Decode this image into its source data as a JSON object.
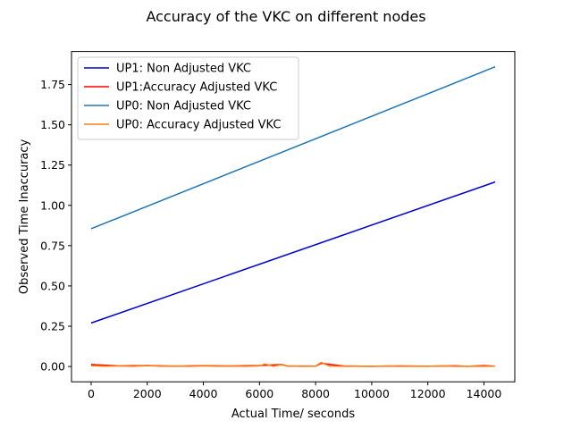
{
  "chart_data": {
    "type": "line",
    "title": "Accuracy of the VKC on different nodes",
    "xlabel": "Actual Time/ seconds",
    "ylabel": "Observed Time Inaccuracy",
    "xlim": [
      -700,
      15100
    ],
    "ylim": [
      -0.095,
      1.955
    ],
    "xticks": [
      0,
      2000,
      4000,
      6000,
      8000,
      10000,
      12000,
      14000
    ],
    "xtick_labels": [
      "0",
      "2000",
      "4000",
      "6000",
      "8000",
      "10000",
      "12000",
      "14000"
    ],
    "yticks": [
      0.0,
      0.25,
      0.5,
      0.75,
      1.0,
      1.25,
      1.5,
      1.75
    ],
    "ytick_labels": [
      "0.00",
      "0.25",
      "0.50",
      "0.75",
      "1.00",
      "1.25",
      "1.50",
      "1.75"
    ],
    "grid": false,
    "legend_position": "top-left",
    "series": [
      {
        "name": "UP1: Non Adjusted VKC",
        "color": "#0000cc",
        "x": [
          0,
          14400
        ],
        "y": [
          0.27,
          1.145
        ]
      },
      {
        "name": "UP1:Accuracy Adjusted VKC",
        "color": "#ff0000",
        "x": [
          0,
          1000,
          2000,
          3000,
          4000,
          5000,
          6000,
          6800,
          7000,
          8000,
          8200,
          9000,
          10000,
          11000,
          12000,
          13000,
          13400,
          14000,
          14400
        ],
        "y": [
          0.012,
          0.004,
          0.006,
          0.002,
          0.005,
          0.003,
          0.006,
          0.012,
          0.003,
          0.002,
          0.02,
          0.003,
          0.001,
          0.003,
          0.002,
          0.004,
          0.001,
          0.005,
          0.002
        ]
      },
      {
        "name": "UP0: Non Adjusted VKC",
        "color": "#1f77b4",
        "x": [
          0,
          14400
        ],
        "y": [
          0.855,
          1.86
        ]
      },
      {
        "name": "UP0: Accuracy Adjusted VKC",
        "color": "#ff7f0e",
        "x": [
          0,
          500,
          1000,
          1500,
          2000,
          2500,
          3000,
          3500,
          4000,
          4500,
          5000,
          5500,
          6000,
          6200,
          6500,
          6800,
          7000,
          7500,
          8000,
          8200,
          8500,
          9000,
          9500,
          10000,
          10500,
          11000,
          11500,
          12000,
          12500,
          13000,
          13500,
          14000,
          14400
        ],
        "y": [
          0.005,
          0.002,
          0.004,
          0.001,
          0.006,
          0.002,
          0.003,
          0.001,
          0.004,
          0.002,
          0.003,
          0.001,
          0.004,
          0.015,
          0.002,
          0.012,
          0.003,
          0.001,
          0.002,
          0.025,
          0.003,
          0.001,
          0.002,
          0.001,
          0.003,
          0.001,
          0.002,
          0.001,
          0.003,
          0.001,
          0.002,
          0.001,
          0.002
        ]
      }
    ]
  }
}
